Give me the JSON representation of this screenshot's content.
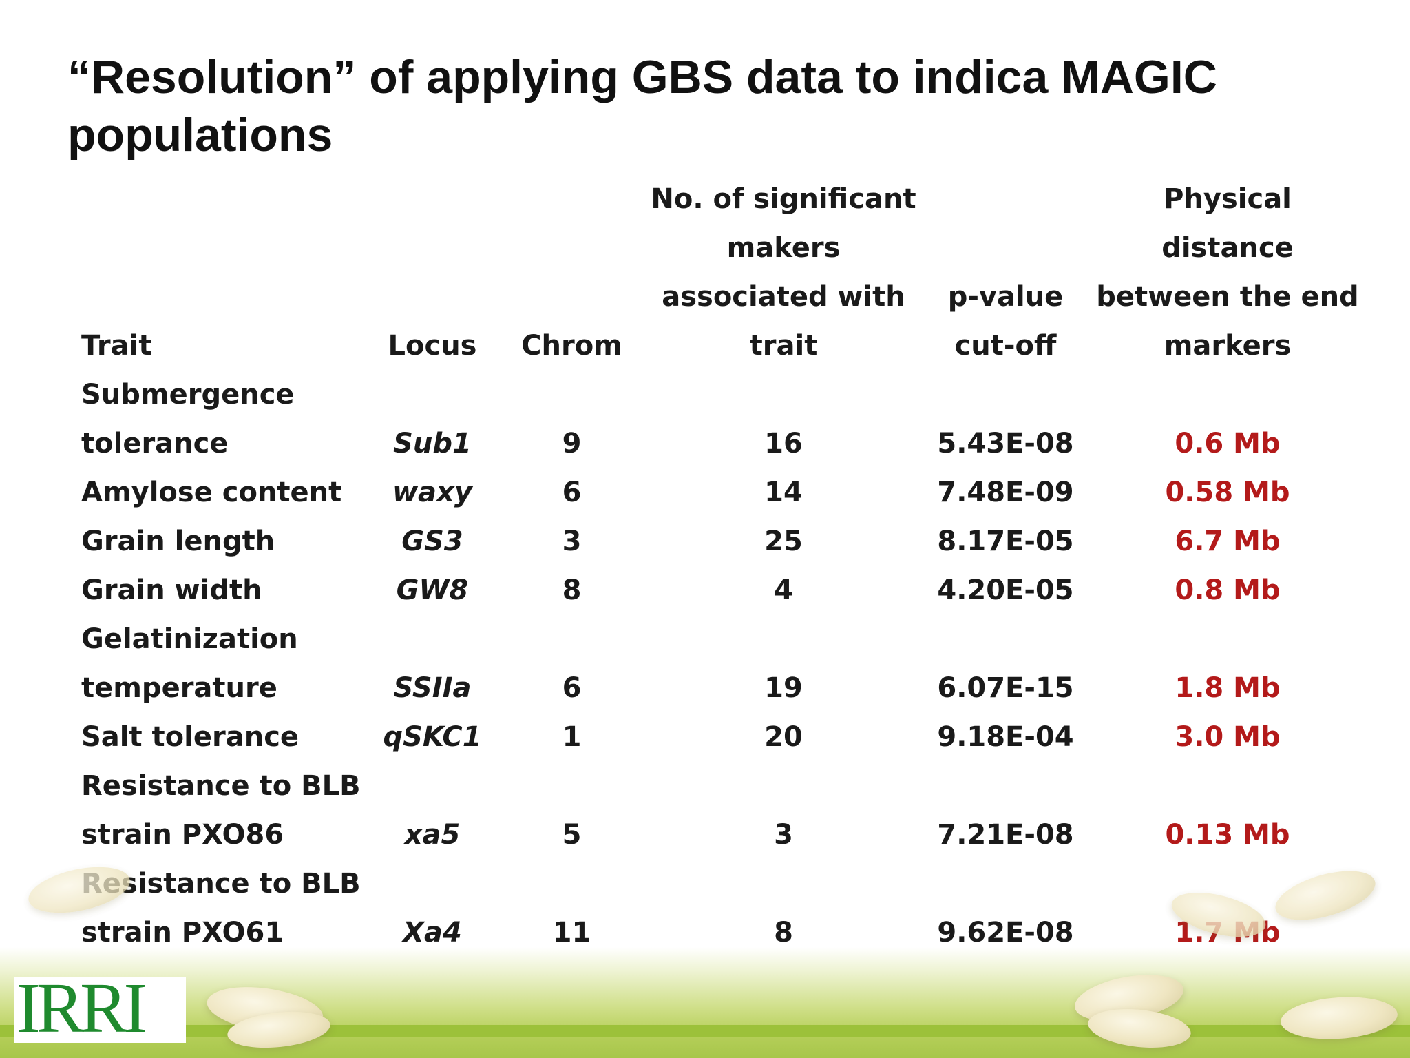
{
  "slide": {
    "title": "“Resolution” of applying GBS data to indica MAGIC populations"
  },
  "table": {
    "headers": {
      "trait": [
        "Trait"
      ],
      "locus": [
        "Locus"
      ],
      "chrom": [
        "Chrom"
      ],
      "markers": [
        "No. of significant",
        "makers",
        "associated with",
        "trait"
      ],
      "pval": [
        "p-value",
        "cut-off"
      ],
      "dist": [
        "Physical distance",
        "between the end",
        "markers"
      ]
    },
    "rows": [
      {
        "trait": [
          "Submergence",
          "tolerance"
        ],
        "locus": "Sub1",
        "chrom": "9",
        "markers": "16",
        "pval": "5.43E-08",
        "dist": "0.6 Mb"
      },
      {
        "trait": [
          "Amylose content"
        ],
        "locus": "waxy",
        "chrom": "6",
        "markers": "14",
        "pval": "7.48E-09",
        "dist": "0.58 Mb"
      },
      {
        "trait": [
          "Grain length"
        ],
        "locus": "GS3",
        "chrom": "3",
        "markers": "25",
        "pval": "8.17E-05",
        "dist": "6.7 Mb"
      },
      {
        "trait": [
          "Grain width"
        ],
        "locus": "GW8",
        "chrom": "8",
        "markers": "4",
        "pval": "4.20E-05",
        "dist": "0.8 Mb"
      },
      {
        "trait": [
          "Gelatinization",
          "temperature"
        ],
        "locus": "SSIIa",
        "chrom": "6",
        "markers": "19",
        "pval": "6.07E-15",
        "dist": "1.8 Mb"
      },
      {
        "trait": [
          "Salt tolerance"
        ],
        "locus": "qSKC1",
        "chrom": "1",
        "markers": "20",
        "pval": "9.18E-04",
        "dist": "3.0 Mb"
      },
      {
        "trait": [
          "Resistance to BLB",
          "strain PXO86"
        ],
        "locus": "xa5",
        "chrom": "5",
        "markers": "3",
        "pval": "7.21E-08",
        "dist": "0.13 Mb"
      },
      {
        "trait": [
          "Resistance to BLB",
          "strain PXO61"
        ],
        "locus": "Xa4",
        "chrom": "11",
        "markers": "8",
        "pval": "9.62E-08",
        "dist": "1.7 Mb"
      }
    ]
  },
  "footer": {
    "logo_text": "IRRI"
  },
  "colors": {
    "distance_text": "#b31a1a",
    "logo": "#1f8a2e",
    "footer_green": "#9cc13a"
  }
}
